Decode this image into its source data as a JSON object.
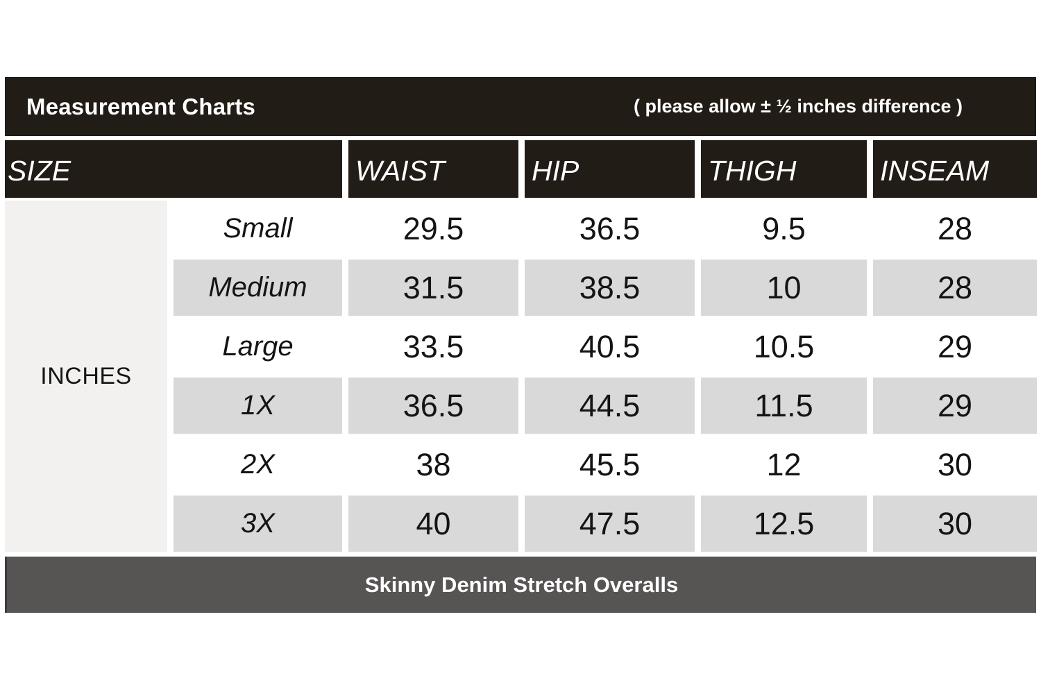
{
  "chart_data": {
    "type": "table",
    "title": "Measurement Charts",
    "note": "( please allow ± ½ inches difference )",
    "unit": "INCHES",
    "columns": [
      "SIZE",
      "WAIST",
      "HIP",
      "THIGH",
      "INSEAM"
    ],
    "rows": [
      [
        "Small",
        "29.5",
        "36.5",
        "9.5",
        "28"
      ],
      [
        "Medium",
        "31.5",
        "38.5",
        "10",
        "28"
      ],
      [
        "Large",
        "33.5",
        "40.5",
        "10.5",
        "29"
      ],
      [
        "1X",
        "36.5",
        "44.5",
        "11.5",
        "29"
      ],
      [
        "2X",
        "38",
        "45.5",
        "12",
        "30"
      ],
      [
        "3X",
        "40",
        "47.5",
        "12.5",
        "30"
      ]
    ],
    "caption": "Skinny Denim Stretch Overalls",
    "layout_hints": {
      "alternating_row_shading": [
        false,
        true,
        false,
        true,
        false,
        true
      ],
      "header_row_dark": true,
      "unit_column_spans_all_rows": true
    }
  },
  "colors": {
    "header_bg": "#221c17",
    "header_text": "#ffffff",
    "alt_row_bg": "#d9d9d9",
    "unit_column_bg": "#f2f1ef",
    "body_text": "#141414",
    "footer_bg": "#575454",
    "page_bg": "#ffffff"
  }
}
